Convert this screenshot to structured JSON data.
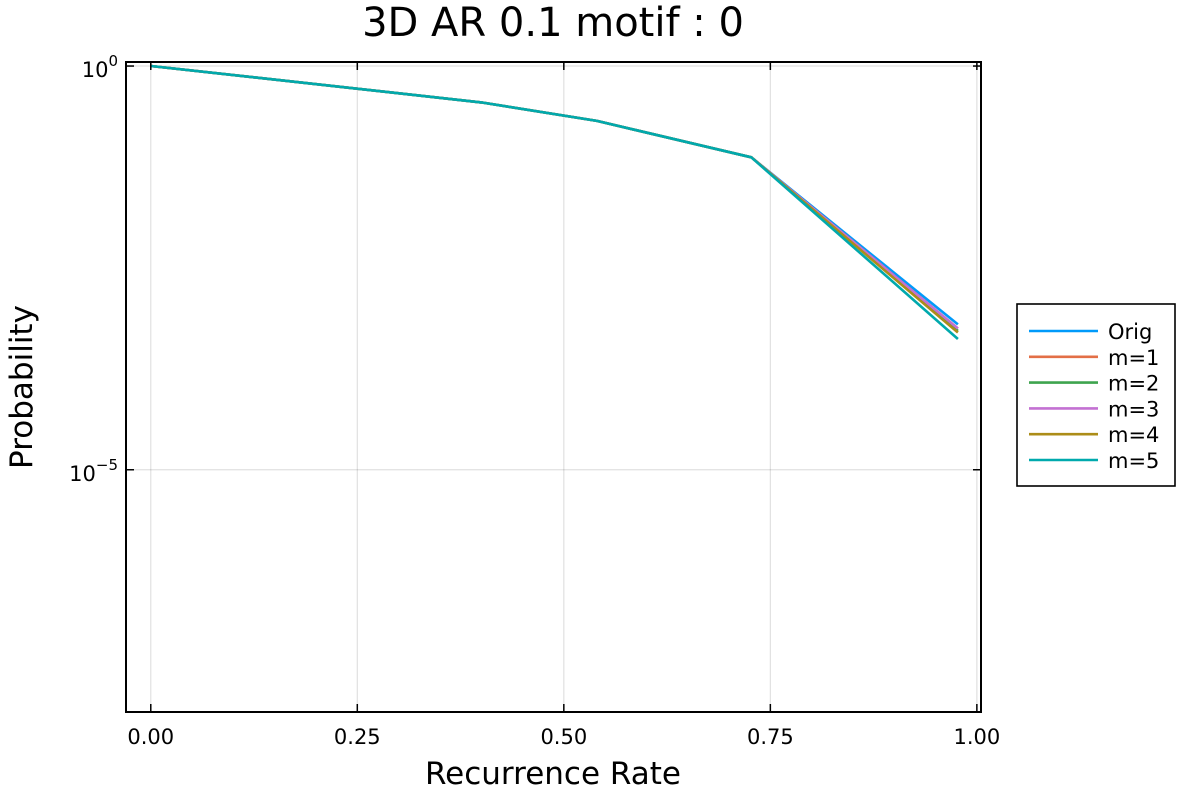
{
  "chart_data": {
    "type": "line",
    "title": "3D AR 0.1 motif : 0",
    "xlabel": "Recurrence Rate",
    "ylabel": "Probability",
    "xlim": [
      -0.03,
      1.005
    ],
    "ylim_log10": [
      -8,
      0.05
    ],
    "y_scale": "log",
    "grid": true,
    "legend_position": "right",
    "xticks": [
      0.0,
      0.25,
      0.5,
      0.75,
      1.0
    ],
    "xtick_labels": [
      "0.00",
      "0.25",
      "0.50",
      "0.75",
      "1.00"
    ],
    "yticks_log10": [
      0,
      -5
    ],
    "ytick_labels": [
      {
        "base": "10",
        "exp": "0"
      },
      {
        "base": "10",
        "exp": "−5"
      }
    ],
    "series": [
      {
        "name": "Orig",
        "color": "#009AFA",
        "x": [
          0.0,
          0.4,
          0.54,
          0.727,
          0.977
        ],
        "y_log10": [
          0.0,
          -0.45,
          -0.68,
          -1.13,
          -3.2
        ]
      },
      {
        "name": "m=1",
        "color": "#E36F47",
        "x": [
          0.0,
          0.4,
          0.54,
          0.727,
          0.977
        ],
        "y_log10": [
          0.0,
          -0.45,
          -0.68,
          -1.13,
          -3.25
        ]
      },
      {
        "name": "m=2",
        "color": "#3EA44E",
        "x": [
          0.0,
          0.4,
          0.54,
          0.727,
          0.977
        ],
        "y_log10": [
          0.0,
          -0.45,
          -0.68,
          -1.13,
          -3.28
        ]
      },
      {
        "name": "m=3",
        "color": "#C371D2",
        "x": [
          0.0,
          0.4,
          0.54,
          0.727,
          0.977
        ],
        "y_log10": [
          0.0,
          -0.45,
          -0.68,
          -1.13,
          -3.25
        ]
      },
      {
        "name": "m=4",
        "color": "#AC8D18",
        "x": [
          0.0,
          0.4,
          0.54,
          0.727,
          0.977
        ],
        "y_log10": [
          0.0,
          -0.45,
          -0.68,
          -1.13,
          -3.3
        ]
      },
      {
        "name": "m=5",
        "color": "#00A9AD",
        "x": [
          0.0,
          0.4,
          0.54,
          0.727,
          0.977
        ],
        "y_log10": [
          0.0,
          -0.45,
          -0.68,
          -1.13,
          -3.38
        ]
      }
    ]
  }
}
